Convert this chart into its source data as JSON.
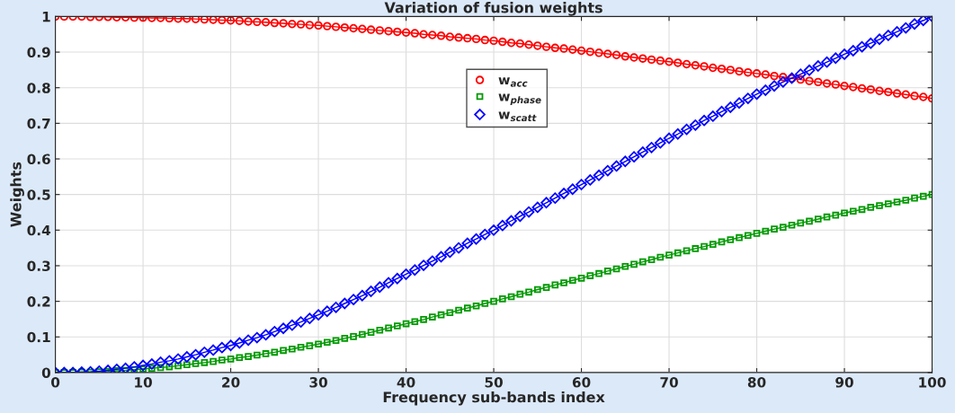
{
  "chart_data": {
    "type": "line",
    "title": "Variation of fusion weights",
    "xlabel": "Frequency sub-bands index",
    "ylabel": "Weights",
    "x": [
      0,
      1,
      2,
      3,
      4,
      5,
      6,
      7,
      8,
      9,
      10,
      11,
      12,
      13,
      14,
      15,
      16,
      17,
      18,
      19,
      20,
      21,
      22,
      23,
      24,
      25,
      26,
      27,
      28,
      29,
      30,
      31,
      32,
      33,
      34,
      35,
      36,
      37,
      38,
      39,
      40,
      41,
      42,
      43,
      44,
      45,
      46,
      47,
      48,
      49,
      50,
      51,
      52,
      53,
      54,
      55,
      56,
      57,
      58,
      59,
      60,
      61,
      62,
      63,
      64,
      65,
      66,
      67,
      68,
      69,
      70,
      71,
      72,
      73,
      74,
      75,
      76,
      77,
      78,
      79,
      80,
      81,
      82,
      83,
      84,
      85,
      86,
      87,
      88,
      89,
      90,
      91,
      92,
      93,
      94,
      95,
      96,
      97,
      98,
      99,
      100
    ],
    "series": [
      {
        "name": "w$_{acc}$",
        "color": "#ff0000",
        "marker": "circle",
        "values": [
          1.0,
          1.0,
          1.0,
          1.0,
          0.999,
          0.999,
          0.999,
          0.998,
          0.998,
          0.997,
          0.997,
          0.996,
          0.996,
          0.995,
          0.994,
          0.994,
          0.993,
          0.992,
          0.991,
          0.99,
          0.989,
          0.988,
          0.986,
          0.985,
          0.984,
          0.982,
          0.981,
          0.979,
          0.978,
          0.976,
          0.975,
          0.973,
          0.971,
          0.969,
          0.967,
          0.965,
          0.963,
          0.961,
          0.959,
          0.957,
          0.955,
          0.953,
          0.95,
          0.948,
          0.946,
          0.943,
          0.941,
          0.939,
          0.937,
          0.934,
          0.932,
          0.929,
          0.926,
          0.924,
          0.921,
          0.918,
          0.915,
          0.912,
          0.91,
          0.907,
          0.904,
          0.901,
          0.898,
          0.895,
          0.892,
          0.888,
          0.885,
          0.882,
          0.879,
          0.876,
          0.873,
          0.87,
          0.866,
          0.863,
          0.86,
          0.856,
          0.853,
          0.85,
          0.846,
          0.843,
          0.84,
          0.837,
          0.833,
          0.83,
          0.826,
          0.823,
          0.819,
          0.816,
          0.812,
          0.809,
          0.805,
          0.802,
          0.798,
          0.795,
          0.791,
          0.788,
          0.784,
          0.781,
          0.777,
          0.774,
          0.77
        ]
      },
      {
        "name": "w$_{phase}$",
        "color": "#009900",
        "marker": "square",
        "values": [
          0.0,
          0.0,
          0.0,
          0.001,
          0.001,
          0.002,
          0.003,
          0.005,
          0.006,
          0.008,
          0.01,
          0.012,
          0.014,
          0.016,
          0.019,
          0.022,
          0.025,
          0.028,
          0.031,
          0.035,
          0.038,
          0.042,
          0.045,
          0.049,
          0.053,
          0.057,
          0.062,
          0.066,
          0.071,
          0.075,
          0.08,
          0.085,
          0.09,
          0.096,
          0.101,
          0.107,
          0.113,
          0.119,
          0.125,
          0.131,
          0.137,
          0.143,
          0.149,
          0.156,
          0.162,
          0.168,
          0.175,
          0.181,
          0.187,
          0.194,
          0.2,
          0.207,
          0.213,
          0.22,
          0.226,
          0.233,
          0.239,
          0.246,
          0.252,
          0.259,
          0.265,
          0.272,
          0.278,
          0.285,
          0.291,
          0.298,
          0.304,
          0.311,
          0.317,
          0.324,
          0.33,
          0.336,
          0.342,
          0.348,
          0.354,
          0.36,
          0.367,
          0.373,
          0.379,
          0.385,
          0.391,
          0.397,
          0.403,
          0.408,
          0.414,
          0.42,
          0.425,
          0.431,
          0.437,
          0.442,
          0.448,
          0.453,
          0.458,
          0.464,
          0.469,
          0.474,
          0.479,
          0.484,
          0.49,
          0.495,
          0.5
        ]
      },
      {
        "name": "w$_{scatt}$",
        "color": "#0000ff",
        "marker": "diamond",
        "values": [
          0.0,
          0.0,
          0.0,
          0.001,
          0.002,
          0.004,
          0.006,
          0.009,
          0.012,
          0.016,
          0.02,
          0.024,
          0.029,
          0.033,
          0.038,
          0.044,
          0.05,
          0.057,
          0.063,
          0.07,
          0.076,
          0.083,
          0.091,
          0.098,
          0.106,
          0.115,
          0.124,
          0.133,
          0.142,
          0.152,
          0.162,
          0.172,
          0.183,
          0.194,
          0.205,
          0.216,
          0.228,
          0.24,
          0.252,
          0.264,
          0.276,
          0.288,
          0.301,
          0.313,
          0.325,
          0.338,
          0.35,
          0.363,
          0.375,
          0.388,
          0.4,
          0.413,
          0.426,
          0.439,
          0.451,
          0.464,
          0.477,
          0.49,
          0.503,
          0.515,
          0.528,
          0.541,
          0.554,
          0.567,
          0.58,
          0.593,
          0.606,
          0.619,
          0.632,
          0.645,
          0.658,
          0.67,
          0.683,
          0.695,
          0.708,
          0.72,
          0.733,
          0.745,
          0.757,
          0.77,
          0.782,
          0.793,
          0.805,
          0.816,
          0.827,
          0.838,
          0.849,
          0.861,
          0.872,
          0.883,
          0.894,
          0.904,
          0.915,
          0.925,
          0.936,
          0.947,
          0.957,
          0.968,
          0.979,
          0.989,
          1.0
        ]
      }
    ],
    "xlim": [
      0,
      100
    ],
    "xticks": [
      0,
      10,
      20,
      30,
      40,
      50,
      60,
      70,
      80,
      90,
      100
    ],
    "ylim": [
      0,
      1
    ],
    "yticks": [
      0,
      0.1,
      0.2,
      0.3,
      0.4,
      0.5,
      0.6,
      0.7,
      0.8,
      0.9,
      1
    ],
    "grid": true,
    "legend": "top",
    "line_style": "solid"
  }
}
